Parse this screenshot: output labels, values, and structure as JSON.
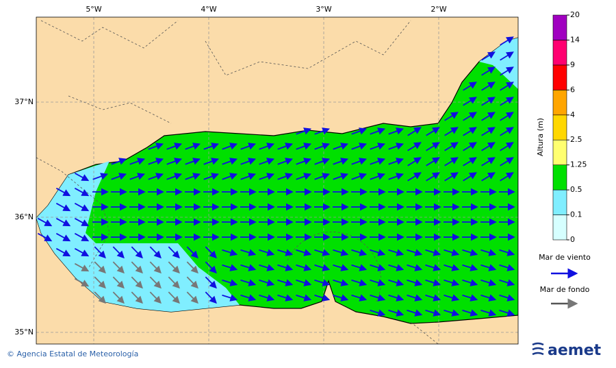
{
  "map": {
    "lon_labels": [
      "5°W",
      "4°W",
      "3°W",
      "2°W"
    ],
    "lat_labels": [
      "37°N",
      "36°N",
      "35°N"
    ]
  },
  "colorbar": {
    "title": "Altura (m)",
    "ticks": [
      0,
      0.1,
      0.5,
      1.25,
      2.5,
      4,
      6,
      9,
      14,
      20
    ],
    "colors": [
      "#d6ffff",
      "#80eeff",
      "#00e000",
      "#ffff70",
      "#ffd700",
      "#ffa500",
      "#ff0000",
      "#ff0070",
      "#a000c0"
    ]
  },
  "legend": {
    "wind_sea": "Mar de viento",
    "swell": "Mar de fondo"
  },
  "footer": {
    "credit": "© Agencia Estatal de Meteorología",
    "logo": "aemet"
  }
}
